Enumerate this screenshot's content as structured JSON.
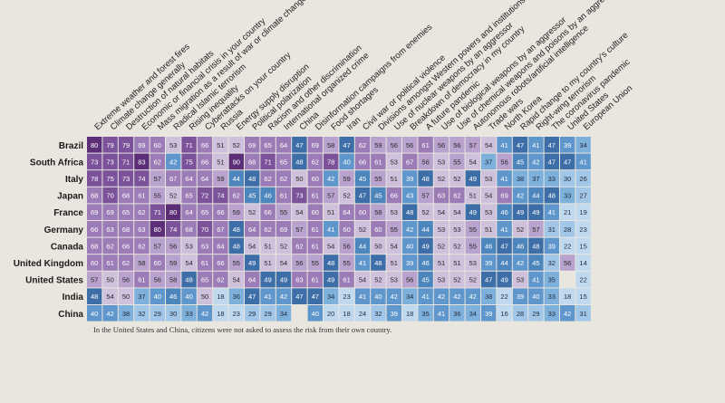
{
  "chart_data": {
    "type": "heatmap",
    "columns": [
      "Extreme weather and forest fires",
      "Climate change generally",
      "Destruction of natural habitats",
      "Economic or financial crisis in your country",
      "Mass migration as a result of war or climate change",
      "Radical Islamic terrorism",
      "Rising inequality",
      "Cyberattacks on your country",
      "Russia",
      "Energy supply disruption",
      "Political polarization",
      "Racism and other discrimination",
      "International organized crime",
      "China",
      "Disinformation campaigns from enemies",
      "Food shortages",
      "Iran",
      "Civil war or political violence",
      "Divisions amongst Western powers and institutions",
      "Use of nuclear weapons by an aggressor",
      "Breakdown of democracy in my country",
      "A future pandemic",
      "Use of biological weapons by an aggressor",
      "Use of chemical weapons and poisons by an aggressor",
      "Autonomous robots/artificial intelligence",
      "Trade wars",
      "North Korea",
      "Rapid change to my country's culture",
      "Right-wing terrorism",
      "The coronavirus pandemic",
      "United States",
      "European Union"
    ],
    "rows": [
      {
        "name": "Brazil",
        "values": [
          80,
          79,
          79,
          69,
          60,
          53,
          71,
          66,
          51,
          52,
          69,
          65,
          64,
          47,
          69,
          58,
          47,
          62,
          59,
          56,
          56,
          61,
          56,
          56,
          57,
          54,
          41,
          47,
          41,
          47,
          39,
          34
        ]
      },
      {
        "name": "South Africa",
        "values": [
          73,
          73,
          71,
          83,
          62,
          42,
          75,
          66,
          51,
          90,
          68,
          71,
          65,
          48,
          62,
          78,
          40,
          66,
          61,
          53,
          67,
          56,
          53,
          55,
          54,
          37,
          56,
          45,
          42,
          47,
          47,
          41
        ]
      },
      {
        "name": "Italy",
        "values": [
          78,
          75,
          73,
          74,
          57,
          67,
          64,
          64,
          59,
          44,
          48,
          62,
          62,
          50,
          60,
          42,
          59,
          45,
          55,
          51,
          39,
          48,
          52,
          52,
          49,
          53,
          41,
          38,
          37,
          33,
          30,
          26
        ]
      },
      {
        "name": "Japan",
        "values": [
          68,
          70,
          68,
          61,
          55,
          52,
          65,
          72,
          74,
          62,
          45,
          46,
          61,
          73,
          61,
          57,
          52,
          47,
          45,
          66,
          43,
          57,
          63,
          62,
          51,
          54,
          69,
          42,
          44,
          48,
          33,
          27
        ]
      },
      {
        "name": "France",
        "values": [
          69,
          69,
          65,
          62,
          71,
          80,
          64,
          65,
          66,
          59,
          52,
          66,
          55,
          54,
          60,
          51,
          64,
          60,
          58,
          53,
          48,
          52,
          54,
          54,
          49,
          53,
          46,
          49,
          49,
          41,
          21,
          19
        ]
      },
      {
        "name": "Germany",
        "values": [
          66,
          63,
          68,
          63,
          80,
          74,
          68,
          70,
          67,
          48,
          64,
          62,
          69,
          57,
          61,
          41,
          60,
          52,
          60,
          55,
          42,
          44,
          53,
          53,
          55,
          51,
          41,
          52,
          57,
          31,
          28,
          23
        ]
      },
      {
        "name": "Canada",
        "values": [
          68,
          62,
          66,
          62,
          57,
          56,
          53,
          63,
          64,
          48,
          54,
          51,
          52,
          62,
          61,
          54,
          56,
          44,
          50,
          54,
          40,
          49,
          52,
          52,
          55,
          46,
          47,
          46,
          48,
          39,
          22,
          15
        ]
      },
      {
        "name": "United Kingdom",
        "values": [
          60,
          61,
          62,
          58,
          60,
          59,
          54,
          61,
          66,
          55,
          49,
          51,
          54,
          56,
          55,
          48,
          55,
          41,
          48,
          51,
          39,
          46,
          51,
          51,
          53,
          39,
          44,
          42,
          45,
          32,
          56,
          14
        ]
      },
      {
        "name": "United States",
        "values": [
          57,
          50,
          56,
          61,
          56,
          58,
          48,
          65,
          62,
          54,
          64,
          49,
          49,
          63,
          61,
          49,
          61,
          54,
          52,
          53,
          56,
          45,
          53,
          52,
          52,
          47,
          49,
          53,
          41,
          35,
          null,
          22
        ]
      },
      {
        "name": "India",
        "values": [
          48,
          54,
          50,
          37,
          40,
          46,
          40,
          50,
          18,
          36,
          47,
          41,
          42,
          47,
          47,
          34,
          23,
          41,
          40,
          42,
          34,
          41,
          42,
          42,
          42,
          38,
          22,
          39,
          40,
          33,
          18,
          15
        ]
      },
      {
        "name": "China",
        "values": [
          40,
          42,
          38,
          32,
          29,
          30,
          33,
          42,
          18,
          23,
          29,
          29,
          34,
          null,
          40,
          20,
          18,
          24,
          32,
          39,
          18,
          35,
          41,
          36,
          34,
          39,
          16,
          28,
          29,
          33,
          42,
          31
        ]
      }
    ],
    "footnote": "In the United States and China, citizens were not asked to assess the risk from their own country."
  }
}
